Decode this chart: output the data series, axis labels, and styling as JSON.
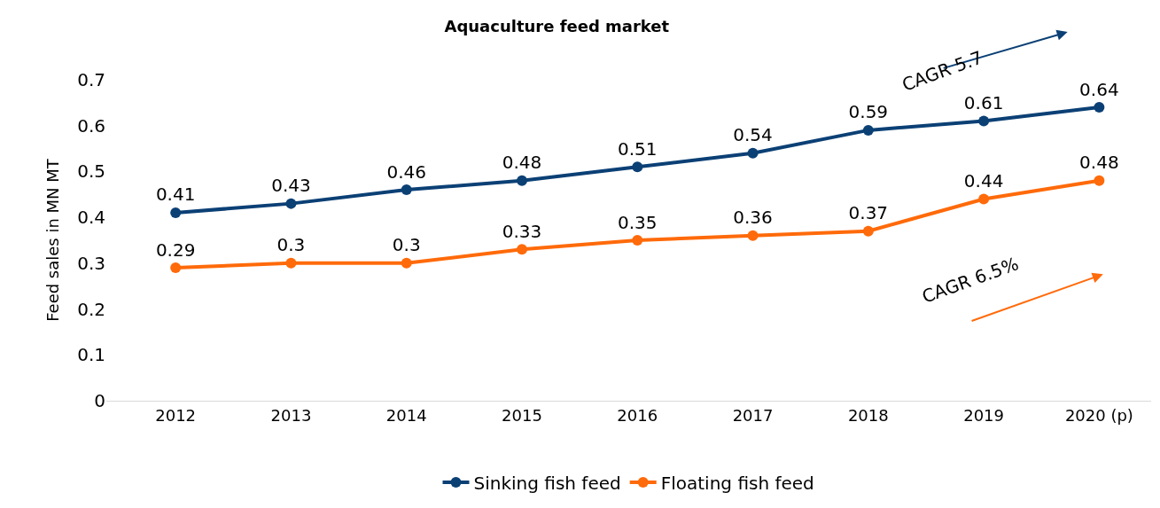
{
  "chart_data": {
    "type": "line",
    "title": "Aquaculture feed market",
    "ylabel": "Feed sales in MN MT",
    "categories": [
      "2012",
      "2013",
      "2014",
      "2015",
      "2016",
      "2017",
      "2018",
      "2019",
      "2020 (p)"
    ],
    "series": [
      {
        "name": "Sinking fish feed",
        "color": "#0b4075",
        "values": [
          0.41,
          0.43,
          0.46,
          0.48,
          0.51,
          0.54,
          0.59,
          0.61,
          0.64
        ]
      },
      {
        "name": "Floating fish feed",
        "color": "#ff6a0a",
        "values": [
          0.29,
          0.3,
          0.3,
          0.33,
          0.35,
          0.36,
          0.37,
          0.44,
          0.48
        ]
      }
    ],
    "ylim": [
      0,
      0.7
    ],
    "yticks": [
      0,
      0.1,
      0.2,
      0.3,
      0.4,
      0.5,
      0.6,
      0.7
    ],
    "annotations": [
      "CAGR 5.7",
      "CAGR 6.5%"
    ],
    "data_labels": true,
    "legend": "bottom",
    "marker": "circle",
    "line_style": "solid"
  }
}
